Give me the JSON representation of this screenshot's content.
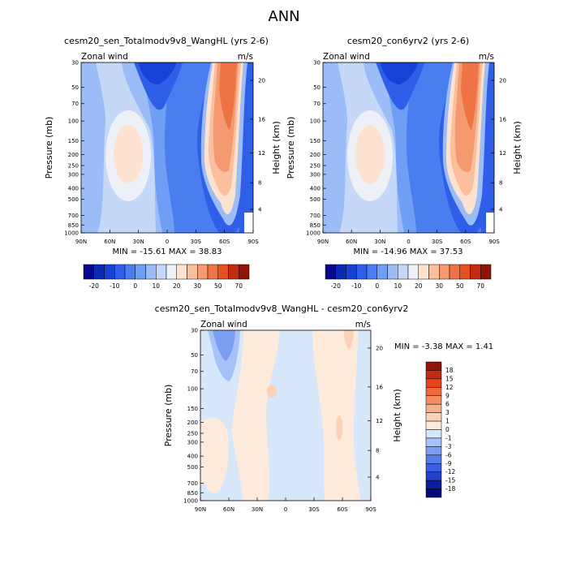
{
  "page": {
    "title": "ANN"
  },
  "chart_data": [
    {
      "type": "contour",
      "title": "cesm20_sen_Totalmodv9v8_WangHL (yrs 2-6)",
      "left_label": "Zonal wind",
      "right_label": "m/s",
      "xlabel": "",
      "ylabel": "Pressure (mb)",
      "ylabel_right": "Height (km)",
      "x_ticks": [
        "90N",
        "60N",
        "30N",
        "0",
        "30S",
        "60S",
        "90S"
      ],
      "y_ticks": [
        "30",
        "50",
        "70",
        "100",
        "150",
        "200",
        "250",
        "300",
        "400",
        "500",
        "700",
        "850",
        "1000"
      ],
      "y_right_ticks": [
        "20",
        "16",
        "12",
        "8",
        "4"
      ],
      "stats": "MIN = -15.61  MAX =  38.83",
      "colorbar_labels": [
        "-20",
        "-10",
        "0",
        "10",
        "20",
        "30",
        "50",
        "70"
      ],
      "min": -15.61,
      "max": 38.83
    },
    {
      "type": "contour",
      "title": "cesm20_con6yrv2 (yrs 2-6)",
      "left_label": "Zonal wind",
      "right_label": "m/s",
      "xlabel": "",
      "ylabel": "Pressure (mb)",
      "ylabel_right": "Height (km)",
      "x_ticks": [
        "90N",
        "60N",
        "30N",
        "0",
        "30S",
        "60S",
        "90S"
      ],
      "y_ticks": [
        "30",
        "50",
        "70",
        "100",
        "150",
        "200",
        "250",
        "300",
        "400",
        "500",
        "700",
        "850",
        "1000"
      ],
      "y_right_ticks": [
        "20",
        "16",
        "12",
        "8",
        "4"
      ],
      "stats": "MIN = -14.96  MAX =  37.53",
      "colorbar_labels": [
        "-20",
        "-10",
        "0",
        "10",
        "20",
        "30",
        "50",
        "70"
      ],
      "min": -14.96,
      "max": 37.53
    },
    {
      "type": "contour",
      "title": "cesm20_sen_Totalmodv9v8_WangHL - cesm20_con6yrv2",
      "left_label": "Zonal wind",
      "right_label": "m/s",
      "xlabel": "",
      "ylabel": "Pressure (mb)",
      "ylabel_right": "Height (km)",
      "x_ticks": [
        "90N",
        "60N",
        "30N",
        "0",
        "30S",
        "60S",
        "90S"
      ],
      "y_ticks": [
        "30",
        "50",
        "70",
        "100",
        "150",
        "200",
        "250",
        "300",
        "400",
        "500",
        "700",
        "850",
        "1000"
      ],
      "y_right_ticks": [
        "20",
        "16",
        "12",
        "8",
        "4"
      ],
      "stats": "MIN = -3.38  MAX =  1.41",
      "colorbar_labels": [
        "18",
        "15",
        "12",
        "9",
        "6",
        "3",
        "1",
        "0",
        "-1",
        "-3",
        "-6",
        "-9",
        "-12",
        "-15",
        "-18"
      ],
      "min": -3.38,
      "max": 1.41
    }
  ],
  "colors": {
    "abs_scale": [
      "#08088f",
      "#0b2ab4",
      "#1842d6",
      "#2f5fe8",
      "#4a7df0",
      "#6f9ef5",
      "#9cbcf7",
      "#c5d8f8",
      "#eef0f7",
      "#fde2cf",
      "#fbbf9d",
      "#f59a70",
      "#ee7445",
      "#e45020",
      "#c22b0f",
      "#8f1307"
    ],
    "diff_scale": [
      "#8f1307",
      "#c22b0f",
      "#e54618",
      "#ef6a3a",
      "#f48d5f",
      "#f8b28b",
      "#fbd2b5",
      "#fdeadb",
      "#d6e6fb",
      "#a7c2f7",
      "#7c9ef2",
      "#557de9",
      "#3a5fe0",
      "#2441c9",
      "#0b1f9d",
      "#06087a"
    ]
  }
}
